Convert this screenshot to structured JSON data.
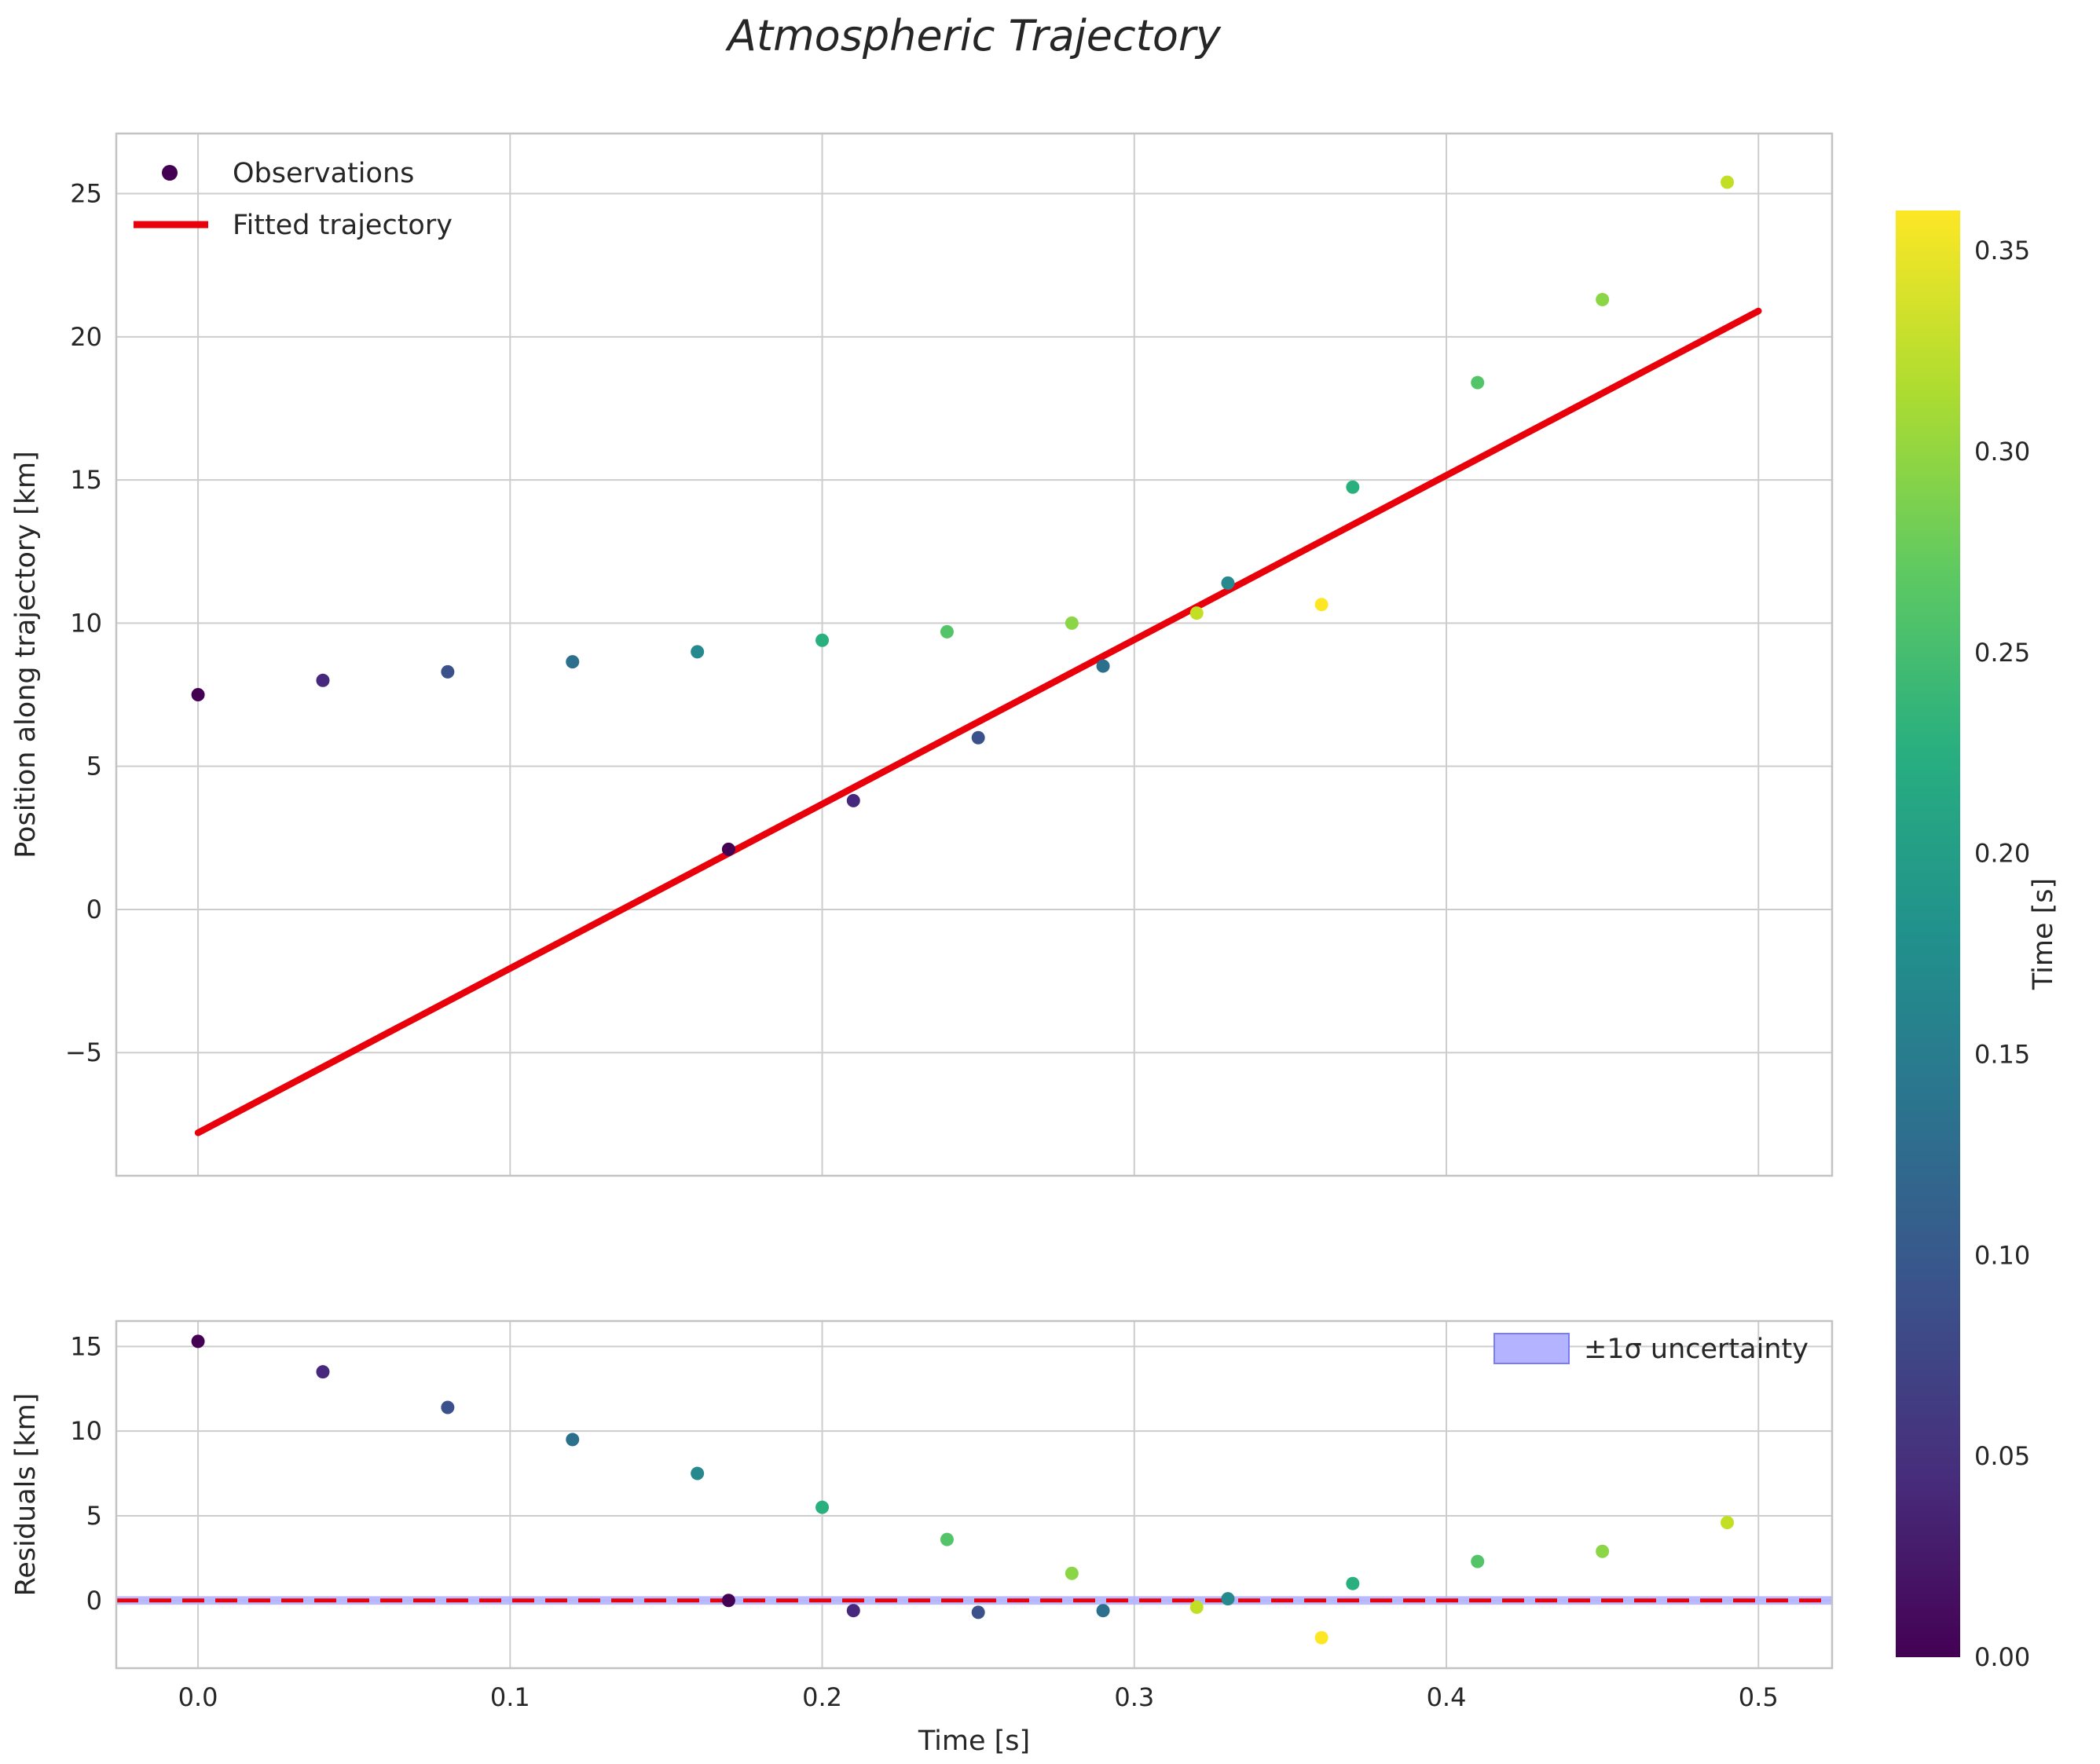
{
  "chart_data": {
    "type": "scatter",
    "title": "Atmospheric Trajectory",
    "colormap": "viridis",
    "colormap_stops": [
      {
        "t": 0.0,
        "color": "#440154"
      },
      {
        "t": 0.125,
        "color": "#472d7b"
      },
      {
        "t": 0.25,
        "color": "#3b528b"
      },
      {
        "t": 0.375,
        "color": "#2c728e"
      },
      {
        "t": 0.5,
        "color": "#21918c"
      },
      {
        "t": 0.625,
        "color": "#28ae80"
      },
      {
        "t": 0.75,
        "color": "#5ec962"
      },
      {
        "t": 0.875,
        "color": "#addc30"
      },
      {
        "t": 1.0,
        "color": "#fde725"
      }
    ],
    "colorbar": {
      "label": "Time [s]",
      "vmin": 0.0,
      "vmax": 0.36,
      "ticks": [
        0.0,
        0.05,
        0.1,
        0.15,
        0.2,
        0.25,
        0.3,
        0.35
      ],
      "tick_labels": [
        "0.00",
        "0.05",
        "0.10",
        "0.15",
        "0.20",
        "0.25",
        "0.30",
        "0.35"
      ]
    },
    "main": {
      "ylabel": "Position along trajectory [km]",
      "xlim": [
        -0.0262,
        0.5236
      ],
      "ylim": [
        -9.3,
        27.1
      ],
      "xticks": [
        0.0,
        0.1,
        0.2,
        0.3,
        0.4,
        0.5
      ],
      "yticks": [
        -5,
        0,
        5,
        10,
        15,
        20,
        25
      ],
      "ytick_labels": [
        "−5",
        "0",
        "5",
        "10",
        "15",
        "20",
        "25"
      ],
      "grid": true,
      "legend_position": "upper left",
      "legend": [
        {
          "label": "Observations",
          "marker": "dot",
          "color": "#440154"
        },
        {
          "label": "Fitted trajectory",
          "marker": "line",
          "color": "#e8000b"
        }
      ],
      "fit_line": {
        "color": "#e8000b",
        "x": [
          0.0,
          0.5
        ],
        "y": [
          -7.8,
          20.9
        ]
      }
    },
    "residuals": {
      "ylabel": "Residuals [km]",
      "xlabel": "Time [s]",
      "ylim": [
        -4.0,
        16.5
      ],
      "yticks": [
        0,
        5,
        10,
        15
      ],
      "ytick_labels": [
        "0",
        "5",
        "10",
        "15"
      ],
      "xtick_labels": [
        "0.0",
        "0.1",
        "0.2",
        "0.3",
        "0.4",
        "0.5"
      ],
      "grid": true,
      "zero_line": {
        "color": "#e8000b",
        "style": "dashed",
        "y": 0
      },
      "uncertainty_band": {
        "label": "±1σ uncertainty",
        "color": "#b3b3ff",
        "edge": "#7b7bf2",
        "half_width": 0.25
      },
      "legend_position": "upper right"
    },
    "points": [
      {
        "x": 0.0,
        "y": 7.5,
        "residual": 15.3,
        "color": "#440154"
      },
      {
        "x": 0.04,
        "y": 8.0,
        "residual": 13.5,
        "color": "#46287c"
      },
      {
        "x": 0.08,
        "y": 8.3,
        "residual": 11.4,
        "color": "#3b518b"
      },
      {
        "x": 0.12,
        "y": 8.65,
        "residual": 9.5,
        "color": "#2d708e"
      },
      {
        "x": 0.16,
        "y": 9.0,
        "residual": 7.5,
        "color": "#25898e"
      },
      {
        "x": 0.2,
        "y": 9.4,
        "residual": 5.5,
        "color": "#2ab07f"
      },
      {
        "x": 0.24,
        "y": 9.7,
        "residual": 3.6,
        "color": "#53c568"
      },
      {
        "x": 0.28,
        "y": 10.0,
        "residual": 1.6,
        "color": "#8bd646"
      },
      {
        "x": 0.32,
        "y": 10.35,
        "residual": -0.4,
        "color": "#c2df23"
      },
      {
        "x": 0.36,
        "y": 10.65,
        "residual": -2.2,
        "color": "#fde725"
      },
      {
        "x": 0.17,
        "y": 2.1,
        "residual": 0.0,
        "color": "#440154"
      },
      {
        "x": 0.21,
        "y": 3.8,
        "residual": -0.6,
        "color": "#46287c"
      },
      {
        "x": 0.25,
        "y": 6.0,
        "residual": -0.7,
        "color": "#3b518b"
      },
      {
        "x": 0.29,
        "y": 8.5,
        "residual": -0.6,
        "color": "#2d708e"
      },
      {
        "x": 0.33,
        "y": 11.4,
        "residual": 0.1,
        "color": "#25898e"
      },
      {
        "x": 0.37,
        "y": 14.75,
        "residual": 1.0,
        "color": "#2ab07f"
      },
      {
        "x": 0.41,
        "y": 18.4,
        "residual": 2.3,
        "color": "#53c568"
      },
      {
        "x": 0.45,
        "y": 21.3,
        "residual": 2.9,
        "color": "#8bd646"
      },
      {
        "x": 0.49,
        "y": 25.4,
        "residual": 4.6,
        "color": "#c2df23"
      }
    ]
  }
}
